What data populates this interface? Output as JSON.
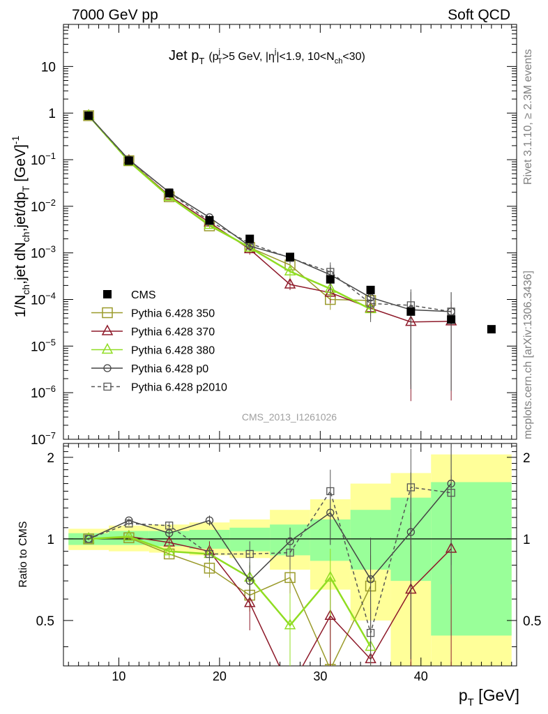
{
  "header": {
    "left": "7000 GeV pp",
    "right": "Soft QCD"
  },
  "side": {
    "rivet": "Rivet 3.1.10, ≥ 2.3M events",
    "mcplots": "mcplots.cern.ch [arXiv:1306.3436]"
  },
  "watermark": "CMS_2013_I1261026",
  "chart_data": {
    "type": "line",
    "title": {
      "main": "Jet p",
      "main_sub": "T",
      "cut1": "(p",
      "cut1_sup": "j",
      "cut1_sub": "T",
      "cut2": ">5 GeV, |η",
      "cut2_sup": "j",
      "cut3": "|<1.9, 10<N",
      "cut3_sub": "ch",
      "cut4": "<30)"
    },
    "ylabel": "1/N",
    "ylabel_parts": [
      "1/N",
      "ch",
      ",jet dN",
      "ch",
      ",jet/dp",
      "T",
      " [GeV]",
      "-1"
    ],
    "ratio_ylabel": "Ratio to CMS",
    "xlabel_parts": [
      "p",
      "T",
      " [GeV]"
    ],
    "x_ticks": [
      10,
      20,
      30,
      40
    ],
    "x_range": [
      4.5,
      49.5
    ],
    "y_range": [
      1e-07,
      80
    ],
    "y_scale": "log",
    "y_ticks": [
      {
        "value": 10,
        "base": "10",
        "exp": ""
      },
      {
        "value": 1,
        "base": "1",
        "exp": ""
      },
      {
        "value": 0.1,
        "base": "10",
        "exp": "−1"
      },
      {
        "value": 0.01,
        "base": "10",
        "exp": "−2"
      },
      {
        "value": 0.001,
        "base": "10",
        "exp": "−3"
      },
      {
        "value": 0.0001,
        "base": "10",
        "exp": "−4"
      },
      {
        "value": 1e-05,
        "base": "10",
        "exp": "−5"
      },
      {
        "value": 1e-06,
        "base": "10",
        "exp": "−6"
      },
      {
        "value": 1e-07,
        "base": "10",
        "exp": "−7"
      }
    ],
    "ratio_range": [
      0.34,
      2.25
    ],
    "ratio_ticks": [
      0.5,
      1,
      2
    ],
    "ratio_tick_labels": [
      "0.5",
      "1",
      "2"
    ],
    "x": [
      7,
      11,
      15,
      19,
      23,
      27,
      31,
      35,
      39,
      43,
      47
    ],
    "bin_edges": [
      5,
      9,
      13,
      17,
      21,
      25,
      29,
      33,
      37,
      41,
      49
    ],
    "ratio_band_bins": {
      "inner": [
        [
          0.95,
          1.05
        ],
        [
          0.95,
          1.07
        ],
        [
          0.94,
          1.07
        ],
        [
          0.92,
          1.08
        ],
        [
          0.9,
          1.1
        ],
        [
          0.87,
          1.13
        ],
        [
          0.83,
          1.18
        ],
        [
          0.77,
          1.28
        ],
        [
          0.7,
          1.42
        ],
        [
          0.44,
          1.62
        ]
      ],
      "outer": [
        [
          0.91,
          1.09
        ],
        [
          0.9,
          1.12
        ],
        [
          0.89,
          1.13
        ],
        [
          0.87,
          1.15
        ],
        [
          0.85,
          1.18
        ],
        [
          0.77,
          1.28
        ],
        [
          0.65,
          1.4
        ],
        [
          0.5,
          1.6
        ],
        [
          0.34,
          1.75
        ],
        [
          0.34,
          2.05
        ]
      ]
    },
    "series": [
      {
        "name": "CMS",
        "color": "#000000",
        "marker": "filled-square",
        "dash": "",
        "values": [
          0.88,
          0.095,
          0.019,
          0.005,
          0.002,
          0.00082,
          0.00027,
          0.00016,
          5.5e-05,
          3.7e-05,
          2.3e-05
        ],
        "ratio": null
      },
      {
        "name": "Pythia 6.428 350",
        "color": "#9a9a2a",
        "marker": "open-square-large",
        "dash": "",
        "values": [
          0.88,
          0.095,
          0.016,
          0.0038,
          0.0013,
          0.00055,
          0.0001,
          9.5e-05,
          null,
          null,
          null
        ],
        "ratio": [
          1.0,
          1.01,
          0.88,
          0.78,
          0.62,
          0.72,
          0.33,
          0.67,
          null,
          null,
          null
        ],
        "ratio_err": [
          0.01,
          0.02,
          0.03,
          0.06,
          0.08,
          0.1,
          0.2,
          0.2,
          null,
          null,
          null
        ]
      },
      {
        "name": "Pythia 6.428 370",
        "color": "#8e1a2a",
        "marker": "open-triangle",
        "dash": "",
        "values": [
          0.88,
          0.095,
          0.017,
          0.0045,
          0.0012,
          0.00021,
          0.00014,
          6.5e-05,
          3.3e-05,
          3.4e-05,
          null
        ],
        "ratio": [
          1.0,
          1.02,
          0.97,
          0.9,
          0.58,
          0.28,
          0.52,
          0.36,
          0.65,
          0.92,
          null
        ],
        "ratio_err": [
          0.01,
          0.02,
          0.04,
          0.08,
          0.12,
          0.12,
          0.2,
          0.2,
          0.6,
          0.8,
          null
        ]
      },
      {
        "name": "Pythia 6.428 380",
        "color": "#90dd22",
        "marker": "open-triangle",
        "dash": "",
        "values": [
          0.88,
          0.092,
          0.016,
          0.004,
          0.0013,
          0.0004,
          0.00017,
          6.2e-05,
          null,
          null,
          null
        ],
        "ratio": [
          1.0,
          1.02,
          0.9,
          0.88,
          0.72,
          0.48,
          0.72,
          0.4,
          null,
          null,
          null
        ],
        "ratio_err": [
          0.01,
          0.02,
          0.03,
          0.06,
          0.1,
          0.15,
          0.2,
          0.2,
          null,
          null,
          null
        ]
      },
      {
        "name": "Pythia 6.428 p0",
        "color": "#444444",
        "marker": "open-circle",
        "dash": "",
        "values": [
          0.88,
          0.1,
          0.02,
          0.0058,
          0.0014,
          0.0008,
          0.00034,
          0.00011,
          6e-05,
          5.5e-05,
          null
        ],
        "ratio": [
          1.0,
          1.17,
          1.05,
          1.17,
          0.7,
          0.98,
          1.25,
          0.71,
          1.06,
          1.6,
          null
        ],
        "ratio_err": [
          0.01,
          0.02,
          0.03,
          0.05,
          0.1,
          0.12,
          0.3,
          0.3,
          0.7,
          0.8,
          null
        ]
      },
      {
        "name": "Pythia 6.428 p2010",
        "color": "#555555",
        "marker": "open-square",
        "dash": "5,4",
        "values": [
          0.88,
          0.097,
          0.02,
          0.0048,
          0.0016,
          0.00078,
          0.00039,
          8.2e-05,
          7.5e-05,
          5.5e-05,
          null
        ],
        "ratio": [
          1.0,
          1.14,
          1.12,
          0.88,
          0.88,
          0.89,
          1.5,
          0.45,
          1.55,
          1.48,
          null
        ],
        "ratio_err": [
          0.01,
          0.02,
          0.03,
          0.05,
          0.1,
          0.12,
          0.3,
          0.3,
          0.6,
          0.8,
          null
        ]
      }
    ]
  }
}
